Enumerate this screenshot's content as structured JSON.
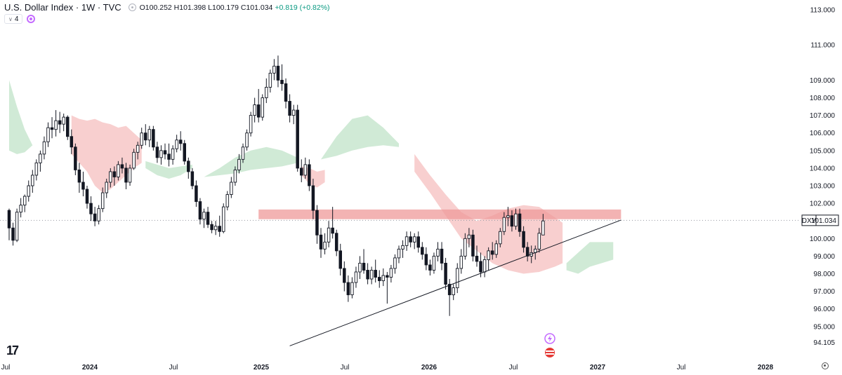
{
  "header": {
    "title": "U.S. Dollar Index · 1W · TVC",
    "ohlc": "O100.252 H101.398 L100.179 C101.034",
    "change": "+0.819 (+0.82%)",
    "indicator_count": "4"
  },
  "price_label": {
    "symbol": "DXY",
    "value": "101.034"
  },
  "colors": {
    "up": "#131722",
    "down": "#131722",
    "cloud_bear": "#f7c7c7",
    "cloud_bull": "#c8e6cf",
    "resistance_zone": "#ef9a9a",
    "trendline": "#131722",
    "current_price_line": "#9598a1"
  },
  "chart_data": {
    "type": "candlestick",
    "title": "U.S. Dollar Index",
    "timeframe": "1W",
    "x_ticks": [
      "Jul",
      "2024",
      "Jul",
      "2025",
      "Jul",
      "2026",
      "Jul",
      "2027",
      "Jul",
      "2028"
    ],
    "y_ticks": [
      "113.000",
      "111.000",
      "109.000",
      "108.000",
      "107.000",
      "106.000",
      "105.000",
      "104.000",
      "103.000",
      "102.000",
      "100.000",
      "99.000",
      "98.000",
      "97.000",
      "96.000",
      "95.000",
      "94.105"
    ],
    "ylim": [
      93.7,
      113.4
    ],
    "last_price": 101.034,
    "grid": false,
    "candles": [
      [
        101.6,
        101.7,
        99.9,
        100.6
      ],
      [
        100.6,
        100.9,
        99.6,
        99.9
      ],
      [
        99.9,
        101.7,
        99.8,
        101.5
      ],
      [
        101.5,
        102.3,
        101.2,
        101.9
      ],
      [
        101.9,
        102.5,
        101.5,
        102.4
      ],
      [
        102.4,
        103.3,
        102.1,
        103.0
      ],
      [
        103.0,
        103.9,
        102.6,
        103.6
      ],
      [
        103.6,
        104.5,
        103.3,
        104.3
      ],
      [
        104.3,
        105.0,
        103.8,
        104.8
      ],
      [
        104.8,
        105.8,
        104.5,
        105.5
      ],
      [
        105.5,
        106.6,
        105.2,
        106.3
      ],
      [
        106.3,
        106.9,
        105.7,
        106.2
      ],
      [
        106.2,
        107.3,
        105.8,
        106.7
      ],
      [
        106.7,
        107.2,
        106.0,
        106.5
      ],
      [
        106.5,
        107.1,
        106.1,
        106.9
      ],
      [
        106.9,
        107.0,
        105.6,
        105.8
      ],
      [
        105.8,
        106.2,
        104.8,
        105.2
      ],
      [
        105.2,
        105.4,
        103.6,
        103.9
      ],
      [
        103.9,
        104.3,
        102.6,
        103.2
      ],
      [
        103.2,
        103.8,
        102.4,
        102.8
      ],
      [
        102.8,
        103.0,
        101.7,
        102.0
      ],
      [
        102.0,
        102.4,
        101.0,
        101.4
      ],
      [
        101.4,
        101.8,
        100.7,
        101.0
      ],
      [
        101.0,
        101.9,
        100.8,
        101.7
      ],
      [
        101.7,
        102.9,
        101.5,
        102.6
      ],
      [
        102.6,
        103.4,
        102.3,
        103.2
      ],
      [
        103.2,
        104.0,
        102.9,
        103.8
      ],
      [
        103.8,
        104.1,
        103.0,
        103.5
      ],
      [
        103.5,
        104.4,
        103.3,
        104.2
      ],
      [
        104.2,
        104.6,
        103.7,
        104.0
      ],
      [
        104.0,
        104.3,
        102.8,
        103.2
      ],
      [
        103.2,
        104.2,
        103.0,
        104.0
      ],
      [
        104.0,
        105.1,
        103.9,
        104.9
      ],
      [
        104.9,
        105.5,
        104.5,
        105.3
      ],
      [
        105.3,
        106.3,
        105.1,
        106.0
      ],
      [
        106.0,
        106.5,
        105.3,
        105.6
      ],
      [
        105.6,
        106.4,
        105.2,
        106.2
      ],
      [
        106.2,
        106.4,
        105.0,
        105.2
      ],
      [
        105.2,
        105.5,
        104.3,
        104.6
      ],
      [
        104.6,
        105.3,
        104.2,
        105.0
      ],
      [
        105.0,
        105.4,
        104.5,
        104.8
      ],
      [
        104.8,
        105.4,
        104.1,
        104.5
      ],
      [
        104.5,
        105.3,
        104.2,
        105.1
      ],
      [
        105.1,
        105.9,
        104.9,
        105.6
      ],
      [
        105.6,
        106.1,
        105.0,
        105.4
      ],
      [
        105.4,
        105.6,
        104.2,
        104.4
      ],
      [
        104.4,
        104.6,
        103.4,
        103.8
      ],
      [
        103.8,
        104.0,
        102.8,
        103.0
      ],
      [
        103.0,
        103.3,
        101.8,
        102.1
      ],
      [
        102.1,
        102.3,
        100.8,
        101.1
      ],
      [
        101.1,
        101.7,
        100.6,
        101.5
      ],
      [
        101.5,
        101.8,
        100.6,
        100.8
      ],
      [
        100.8,
        101.0,
        100.3,
        100.5
      ],
      [
        100.5,
        101.0,
        100.2,
        100.7
      ],
      [
        100.7,
        101.3,
        100.1,
        100.4
      ],
      [
        100.4,
        102.0,
        100.3,
        101.8
      ],
      [
        101.8,
        102.7,
        101.6,
        102.5
      ],
      [
        102.5,
        103.5,
        102.3,
        103.2
      ],
      [
        103.2,
        104.1,
        103.0,
        103.9
      ],
      [
        103.9,
        104.8,
        103.7,
        104.5
      ],
      [
        104.5,
        105.4,
        104.3,
        105.2
      ],
      [
        105.2,
        106.2,
        105.0,
        106.0
      ],
      [
        106.0,
        107.2,
        105.8,
        107.0
      ],
      [
        107.0,
        108.0,
        106.6,
        107.6
      ],
      [
        107.6,
        108.5,
        106.6,
        106.9
      ],
      [
        106.9,
        108.2,
        106.7,
        108.0
      ],
      [
        108.0,
        109.1,
        107.7,
        108.6
      ],
      [
        108.6,
        109.6,
        108.3,
        109.4
      ],
      [
        109.4,
        110.2,
        109.0,
        109.8
      ],
      [
        109.8,
        110.4,
        108.6,
        109.0
      ],
      [
        109.0,
        109.9,
        108.4,
        108.8
      ],
      [
        108.8,
        109.1,
        107.4,
        107.8
      ],
      [
        107.8,
        108.2,
        106.6,
        107.0
      ],
      [
        107.0,
        107.6,
        106.5,
        107.3
      ],
      [
        107.3,
        107.6,
        103.8,
        104.0
      ],
      [
        104.0,
        104.5,
        103.2,
        103.6
      ],
      [
        103.6,
        104.6,
        103.4,
        104.2
      ],
      [
        104.2,
        104.5,
        102.7,
        103.0
      ],
      [
        103.0,
        103.4,
        101.1,
        101.6
      ],
      [
        101.6,
        101.9,
        99.7,
        100.2
      ],
      [
        100.2,
        100.6,
        98.9,
        99.4
      ],
      [
        99.4,
        100.3,
        99.1,
        99.8
      ],
      [
        99.8,
        101.0,
        99.5,
        100.6
      ],
      [
        100.6,
        101.8,
        100.0,
        100.3
      ],
      [
        100.3,
        100.5,
        99.0,
        99.3
      ],
      [
        99.3,
        99.7,
        97.9,
        98.3
      ],
      [
        98.3,
        98.7,
        97.0,
        97.5
      ],
      [
        97.5,
        97.9,
        96.4,
        96.8
      ],
      [
        96.8,
        97.8,
        96.6,
        97.5
      ],
      [
        97.5,
        98.4,
        97.2,
        98.1
      ],
      [
        98.1,
        99.0,
        97.7,
        98.6
      ],
      [
        98.6,
        99.4,
        98.0,
        98.2
      ],
      [
        98.2,
        98.6,
        97.4,
        97.7
      ],
      [
        97.7,
        98.4,
        97.4,
        98.2
      ],
      [
        98.2,
        98.8,
        97.5,
        97.8
      ],
      [
        97.8,
        98.2,
        97.2,
        97.6
      ],
      [
        97.6,
        98.3,
        97.3,
        97.9
      ],
      [
        97.9,
        98.1,
        96.3,
        97.8
      ],
      [
        97.8,
        98.5,
        97.5,
        98.3
      ],
      [
        98.3,
        99.1,
        98.0,
        98.9
      ],
      [
        98.9,
        99.6,
        98.6,
        99.4
      ],
      [
        99.4,
        99.9,
        98.9,
        99.6
      ],
      [
        99.6,
        100.4,
        99.3,
        100.1
      ],
      [
        100.1,
        100.4,
        99.5,
        99.8
      ],
      [
        99.8,
        100.3,
        99.4,
        100.1
      ],
      [
        100.1,
        100.4,
        99.2,
        99.5
      ],
      [
        99.5,
        99.8,
        98.8,
        99.1
      ],
      [
        99.1,
        99.5,
        98.2,
        98.5
      ],
      [
        98.5,
        98.8,
        97.9,
        98.2
      ],
      [
        98.2,
        99.2,
        98.0,
        99.0
      ],
      [
        99.0,
        99.8,
        98.7,
        99.4
      ],
      [
        99.4,
        99.8,
        98.2,
        98.6
      ],
      [
        98.6,
        98.9,
        97.1,
        97.4
      ],
      [
        97.4,
        97.7,
        95.6,
        96.8
      ],
      [
        96.8,
        97.4,
        96.5,
        97.2
      ],
      [
        97.2,
        98.6,
        96.9,
        98.3
      ],
      [
        98.3,
        99.4,
        98.0,
        99.0
      ],
      [
        99.0,
        100.3,
        98.8,
        100.0
      ],
      [
        100.0,
        100.6,
        99.5,
        100.2
      ],
      [
        100.2,
        100.5,
        98.7,
        99.0
      ],
      [
        99.0,
        99.6,
        98.4,
        98.7
      ],
      [
        98.7,
        99.2,
        97.8,
        98.1
      ],
      [
        98.1,
        99.0,
        97.8,
        98.8
      ],
      [
        98.8,
        99.5,
        98.2,
        99.3
      ],
      [
        99.3,
        99.8,
        98.8,
        99.1
      ],
      [
        99.1,
        99.9,
        98.9,
        99.7
      ],
      [
        99.7,
        100.6,
        99.5,
        100.4
      ],
      [
        100.4,
        101.5,
        100.2,
        101.2
      ],
      [
        101.2,
        101.8,
        100.7,
        101.3
      ],
      [
        101.3,
        101.6,
        100.4,
        100.7
      ],
      [
        100.7,
        101.7,
        100.5,
        101.4
      ],
      [
        101.4,
        101.7,
        100.1,
        100.4
      ],
      [
        100.4,
        100.7,
        99.2,
        99.5
      ],
      [
        99.5,
        99.8,
        98.7,
        99.0
      ],
      [
        99.0,
        99.6,
        98.6,
        99.2
      ],
      [
        99.2,
        99.6,
        98.8,
        99.4
      ],
      [
        99.4,
        100.6,
        99.2,
        100.3
      ],
      [
        100.2,
        101.4,
        100.2,
        101.0
      ]
    ],
    "ichimoku_cloud": {
      "bearish_segments": [
        {
          "x": [
            16,
            18,
            20,
            22,
            24,
            26,
            28,
            30,
            32,
            34
          ],
          "top": [
            107.0,
            106.8,
            106.7,
            106.8,
            106.6,
            106.5,
            106.3,
            106.4,
            106.0,
            105.6
          ],
          "bottom": [
            104.8,
            104.3,
            103.8,
            103.0,
            102.6,
            102.8,
            103.2,
            103.6,
            104.0,
            104.3
          ]
        },
        {
          "x": [
            75,
            77,
            79,
            81
          ],
          "top": [
            104.1,
            104.0,
            103.8,
            103.9
          ],
          "bottom": [
            103.6,
            103.1,
            102.9,
            103.2
          ]
        },
        {
          "x": [
            104,
            108,
            112,
            116,
            120,
            124,
            128,
            132,
            136,
            140,
            142
          ],
          "top": [
            104.8,
            103.6,
            102.5,
            101.5,
            101.0,
            101.3,
            101.7,
            101.9,
            101.8,
            101.2,
            100.9
          ],
          "bottom": [
            103.8,
            102.6,
            101.3,
            100.0,
            99.3,
            98.6,
            98.2,
            98.0,
            98.1,
            98.4,
            98.6
          ]
        }
      ],
      "bullish_segments": [
        {
          "x": [
            0,
            2,
            4,
            6
          ],
          "top": [
            109.0,
            107.5,
            106.2,
            105.3
          ],
          "bottom": [
            105.0,
            104.8,
            104.9,
            105.3
          ]
        },
        {
          "x": [
            35,
            38,
            41,
            44,
            47
          ],
          "top": [
            104.4,
            104.2,
            104.0,
            104.1,
            104.2
          ],
          "bottom": [
            104.0,
            103.6,
            103.4,
            103.6,
            104.0
          ]
        },
        {
          "x": [
            50,
            54,
            58,
            62,
            66,
            70,
            74
          ],
          "top": [
            103.5,
            104.0,
            104.6,
            105.0,
            105.2,
            105.0,
            104.6
          ],
          "bottom": [
            103.5,
            103.6,
            103.7,
            103.9,
            104.0,
            104.1,
            104.3
          ]
        },
        {
          "x": [
            80,
            84,
            88,
            92,
            96,
            100
          ],
          "top": [
            104.5,
            105.8,
            106.8,
            107.0,
            106.3,
            105.4
          ],
          "bottom": [
            104.5,
            104.7,
            105.0,
            105.2,
            105.3,
            105.2
          ]
        },
        {
          "x": [
            143,
            146,
            149,
            152,
            155
          ],
          "top": [
            98.6,
            99.2,
            99.8,
            99.8,
            99.8
          ],
          "bottom": [
            98.2,
            98.0,
            98.4,
            98.6,
            98.8
          ]
        }
      ]
    },
    "resistance_zone": {
      "from_bar": 64,
      "to_bar": 157,
      "top": 101.65,
      "bottom": 101.1
    },
    "trendline": {
      "from_bar": 72,
      "from_value": 93.9,
      "to_bar": 157,
      "to_value": 101.05
    }
  }
}
